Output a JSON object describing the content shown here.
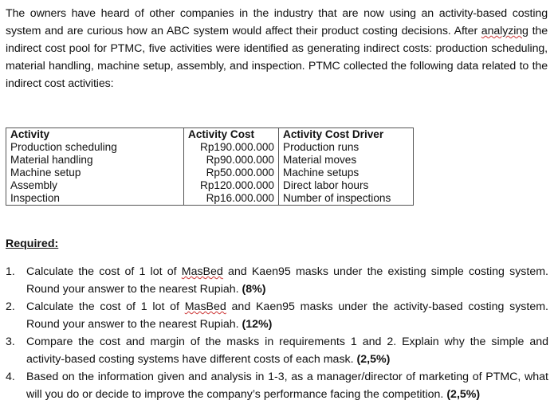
{
  "intro": {
    "before": "The owners have heard of other companies in the industry that are now using an activity-based costing system and are curious how an ABC system would affect their product costing decisions. After ",
    "underlined": "analyzing",
    "after": " the indirect cost pool for PTMC, five activities were identified as generating indirect costs: production scheduling, material handling, machine setup, assembly, and inspection. PTMC collected the following data related to the indirect cost activities:"
  },
  "table": {
    "headers": [
      "Activity",
      "Activity Cost",
      "Activity Cost Driver"
    ],
    "rows": [
      [
        "Production scheduling",
        "Rp190.000.000",
        "Production runs"
      ],
      [
        "Material handling",
        "Rp90.000.000",
        "Material moves"
      ],
      [
        "Machine setup",
        "Rp50.000.000",
        "Machine setups"
      ],
      [
        "Assembly",
        "Rp120.000.000",
        "Direct labor hours"
      ],
      [
        "Inspection",
        "Rp16.000.000",
        "Number of inspections"
      ]
    ]
  },
  "required": "Required:",
  "questions": [
    {
      "num": "1.",
      "a": "Calculate the cost of 1 lot of ",
      "sq": "MasBed",
      "b": " and Kaen95 masks under the existing simple costing system. Round your answer to the nearest Rupiah. ",
      "bold": "(8%)"
    },
    {
      "num": "2.",
      "a": "Calculate the cost of 1 lot of ",
      "sq": "MasBed",
      "b": " and Kaen95 masks under the activity-based costing system. Round your answer to the nearest Rupiah. ",
      "bold": "(12%)"
    },
    {
      "num": "3.",
      "a": "Compare the cost and margin of the masks in requirements 1 and 2. Explain why the simple and activity-based costing systems have different costs of each mask. ",
      "bold": "(2,5%)"
    },
    {
      "num": "4.",
      "a": "Based on the information given and analysis in 1-3, as a manager/director of marketing of PTMC, what will you do or decide to improve the company’s performance facing the competition. ",
      "bold": "(2,5%)"
    }
  ]
}
